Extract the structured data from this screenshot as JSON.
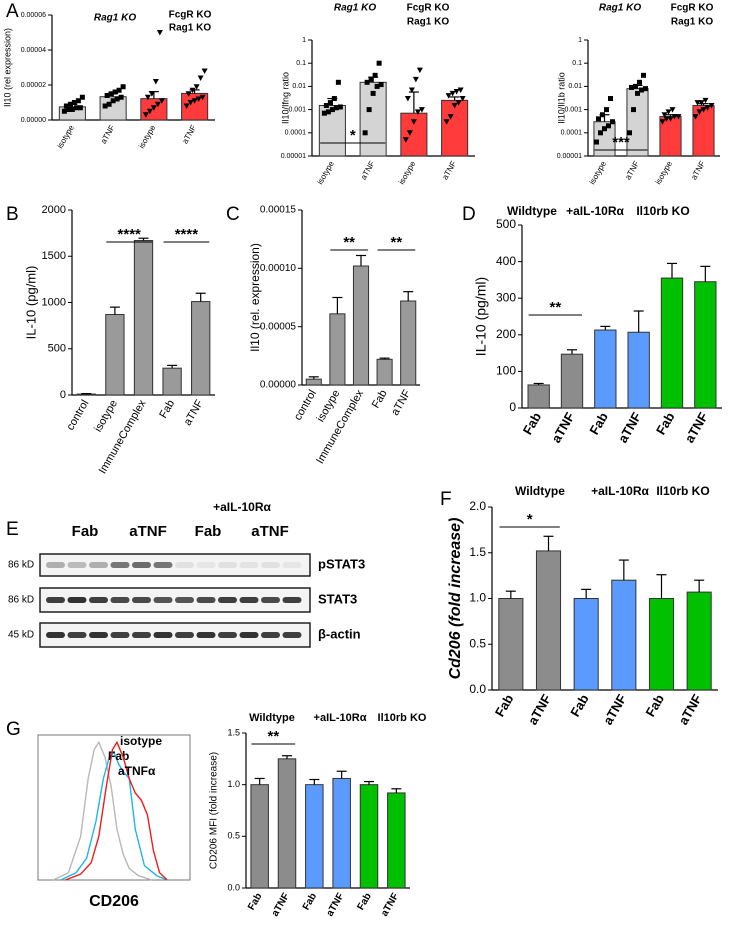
{
  "chart_data": [
    {
      "type": "bar",
      "panel": "A",
      "y_label": "Il10 (rel expression)",
      "group_labels": [
        [
          "Rag1 KO"
        ],
        [
          "FcgR KO",
          "Rag1 KO"
        ]
      ],
      "group_label_colors": [
        "#000000",
        "#e8141b"
      ],
      "categories": [
        "isotype",
        "aTNF",
        "isotype",
        "aTNF"
      ],
      "values": [
        7.5e-06,
        1.33e-05,
        1.22e-05,
        1.52e-05
      ],
      "errors": [
        1.5e-06,
        2e-06,
        4e-06,
        2e-06
      ],
      "colors": [
        "#d4d4d4",
        "#d4d4d4",
        "#ff3b3b",
        "#ff3b3b"
      ],
      "markers": [
        "square",
        "square",
        "triangle-down",
        "triangle-down"
      ],
      "points": [
        [
          5e-06,
          6e-06,
          6e-06,
          7e-06,
          7e-06,
          8e-06,
          9e-06,
          1e-05,
          1.1e-05,
          1.3e-05
        ],
        [
          8e-06,
          9e-06,
          1.1e-05,
          1.2e-05,
          1.3e-05,
          1.4e-05,
          1.5e-05,
          1.6e-05,
          1.7e-05,
          1.9e-05
        ],
        [
          3e-06,
          5e-06,
          7e-06,
          9e-06,
          1.1e-05,
          1.3e-05,
          1.5e-05,
          2.2e-05,
          5e-05
        ],
        [
          8e-06,
          1e-05,
          1.1e-05,
          1.2e-05,
          1.3e-05,
          1.5e-05,
          1.7e-05,
          1.9e-05,
          2.4e-05,
          2.8e-05
        ]
      ],
      "ylim": [
        0,
        6e-05
      ],
      "yticks": [
        {
          "value": 0,
          "label": "0.00000"
        },
        {
          "value": 2e-05,
          "label": "0.00002"
        },
        {
          "value": 4e-05,
          "label": "0.00004"
        },
        {
          "value": 6e-05,
          "label": "0.00006"
        }
      ],
      "significance": []
    },
    {
      "type": "bar",
      "y_label": "Il10/Ifng ratio",
      "log_scale": true,
      "group_labels": [
        [
          "Rag1 KO"
        ],
        [
          "FcgR KO",
          "Rag1 KO"
        ]
      ],
      "group_label_colors": [
        "#000000",
        "#e8141b"
      ],
      "categories": [
        "isotype",
        "aTNF",
        "isotype",
        "aTNF"
      ],
      "values": [
        0.0015,
        0.015,
        0.0007,
        0.0025
      ],
      "errors": [
        0.0015,
        0.01,
        0.005,
        0.001
      ],
      "colors": [
        "#d4d4d4",
        "#d4d4d4",
        "#ff3b3b",
        "#ff3b3b"
      ],
      "markers": [
        "square",
        "square",
        "triangle-down",
        "triangle-down"
      ],
      "points": [
        [
          0.0007,
          0.0008,
          0.001,
          0.0012,
          0.0013,
          0.0015,
          0.002,
          0.003,
          0.015
        ],
        [
          0.0001,
          0.001,
          0.005,
          0.01,
          0.012,
          0.015,
          0.02,
          0.03,
          0.1
        ],
        [
          5e-05,
          0.0001,
          0.0003,
          0.0008,
          0.001,
          0.003,
          0.007,
          0.02,
          0.05
        ],
        [
          0.0003,
          0.0005,
          0.0015,
          0.002,
          0.003,
          0.004,
          0.005,
          0.006,
          0.007
        ]
      ],
      "ylim": [
        1e-05,
        1
      ],
      "yticks": [
        1,
        0.1,
        0.01,
        0.001,
        0.0001,
        1e-05
      ],
      "significance": [
        "*"
      ]
    },
    {
      "type": "bar",
      "y_label": "Il10/Il1b ratio",
      "log_scale": true,
      "group_labels": [
        [
          "Rag1 KO"
        ],
        [
          "FcgR KO",
          "Rag1 KO"
        ]
      ],
      "group_label_colors": [
        "#000000",
        "#e8141b"
      ],
      "categories": [
        "isotype",
        "aTNF",
        "isotype",
        "aTNF"
      ],
      "values": [
        0.0003,
        0.008,
        0.0005,
        0.0015
      ],
      "errors": [
        0.0003,
        0.003,
        0.0001,
        0.0003
      ],
      "colors": [
        "#d4d4d4",
        "#d4d4d4",
        "#ff3b3b",
        "#ff3b3b"
      ],
      "markers": [
        "square",
        "square",
        "triangle-down",
        "triangle-down"
      ],
      "points": [
        [
          4e-05,
          0.0001,
          0.00015,
          0.0002,
          0.0003,
          0.0004,
          0.0006,
          0.001,
          0.003
        ],
        [
          0.0001,
          0.001,
          0.005,
          0.007,
          0.008,
          0.009,
          0.01,
          0.015,
          0.03
        ],
        [
          0.0003,
          0.0004,
          0.0004,
          0.0005,
          0.0005,
          0.0006,
          0.0008,
          0.001
        ],
        [
          0.0005,
          0.0008,
          0.001,
          0.0012,
          0.0015,
          0.002,
          0.002,
          0.0025
        ]
      ],
      "ylim": [
        1e-05,
        1
      ],
      "yticks": [
        1,
        0.1,
        0.01,
        0.001,
        0.0001,
        1e-05
      ],
      "significance": [
        "***"
      ]
    },
    {
      "type": "bar",
      "panel": "B",
      "y_label": "IL-10 (pg/ml)",
      "categories": [
        "control",
        "isotype",
        "ImmuneComplex",
        "Fab",
        "aTNF"
      ],
      "values": [
        10,
        870,
        1670,
        290,
        1010
      ],
      "errors": [
        5,
        80,
        25,
        30,
        90
      ],
      "colors": [
        "#9a9a9a",
        "#9a9a9a",
        "#9a9a9a",
        "#9a9a9a",
        "#9a9a9a"
      ],
      "ylim": [
        0,
        2000
      ],
      "yticks": [
        0,
        500,
        1000,
        1500,
        2000
      ],
      "significance": [
        "****",
        "****"
      ]
    },
    {
      "type": "bar",
      "panel": "C",
      "y_label": "Il10 (rel. expression)",
      "categories": [
        "control",
        "isotype",
        "ImmuneComplex",
        "Fab",
        "aTNF"
      ],
      "values": [
        5e-06,
        6.1e-05,
        0.000102,
        2.2e-05,
        7.2e-05
      ],
      "errors": [
        2e-06,
        1.4e-05,
        9e-06,
        1e-06,
        8e-06
      ],
      "colors": [
        "#9a9a9a",
        "#9a9a9a",
        "#9a9a9a",
        "#9a9a9a",
        "#9a9a9a"
      ],
      "ylim": [
        0,
        0.00015
      ],
      "yticks": [
        {
          "value": 0,
          "label": "0.00000"
        },
        {
          "value": 5e-05,
          "label": "0.00005"
        },
        {
          "value": 0.0001,
          "label": "0.00010"
        },
        {
          "value": 0.00015,
          "label": "0.00015"
        }
      ],
      "significance": [
        "**",
        "**"
      ]
    },
    {
      "type": "bar",
      "panel": "D",
      "y_label": "IL-10 (pg/ml)",
      "group_labels": [
        [
          "Wildtype"
        ],
        [
          "+aIL-10Rα"
        ],
        [
          "Il10rb KO"
        ]
      ],
      "group_label_colors": [
        "#333333",
        "#1f7ac9",
        "#1a9a1a"
      ],
      "categories": [
        "Fab",
        "aTNF",
        "Fab",
        "aTNF",
        "Fab",
        "aTNF"
      ],
      "values": [
        63,
        147,
        213,
        207,
        355,
        345
      ],
      "errors": [
        4,
        12,
        10,
        58,
        40,
        42
      ],
      "colors": [
        "#8c8c8c",
        "#8c8c8c",
        "#5b9bff",
        "#5b9bff",
        "#00c000",
        "#00c000"
      ],
      "ylim": [
        0,
        500
      ],
      "yticks": [
        0,
        100,
        200,
        300,
        400,
        500
      ],
      "significance": [
        "**"
      ]
    },
    {
      "type": "blot",
      "panel": "E",
      "treatment": "+aIL-10Rα",
      "lane_groups": [
        "Fab",
        "aTNF",
        "Fab",
        "aTNF"
      ],
      "lane_group_colors": [
        "#000000",
        "#000000",
        "#1f7ac9",
        "#1f7ac9"
      ],
      "markers": [
        "86 kD",
        "86 kD",
        "45 kD"
      ],
      "proteins": [
        "pSTAT3",
        "STAT3",
        "β-actin"
      ]
    },
    {
      "type": "bar",
      "panel": "F",
      "y_label": "Cd206 (fold increase)",
      "group_labels": [
        [
          "Wildtype"
        ],
        [
          "+aIL-10Rα"
        ],
        [
          "Il10rb KO"
        ]
      ],
      "group_label_colors": [
        "#333333",
        "#1f7ac9",
        "#1a9a1a"
      ],
      "categories": [
        "Fab",
        "aTNF",
        "Fab",
        "aTNF",
        "Fab",
        "aTNF"
      ],
      "values": [
        1.0,
        1.52,
        1.0,
        1.2,
        1.0,
        1.07
      ],
      "errors": [
        0.08,
        0.16,
        0.1,
        0.22,
        0.26,
        0.13
      ],
      "colors": [
        "#8c8c8c",
        "#8c8c8c",
        "#5b9bff",
        "#5b9bff",
        "#00c000",
        "#00c000"
      ],
      "ylim": [
        0,
        2
      ],
      "yticks": [
        {
          "value": 0,
          "label": "0.0"
        },
        {
          "value": 0.5,
          "label": "0.5"
        },
        {
          "value": 1,
          "label": "1.0"
        },
        {
          "value": 1.5,
          "label": "1.5"
        },
        {
          "value": 2,
          "label": "2.0"
        }
      ],
      "significance": [
        "*"
      ]
    },
    {
      "type": "line",
      "panel": "G",
      "x_label": "CD206",
      "xlim": [
        0,
        100
      ],
      "ylim": [
        0,
        100
      ],
      "series": [
        {
          "name": "isotype",
          "color": "#b8b8b8",
          "x": [
            10,
            20,
            28,
            33,
            37,
            40,
            44,
            48,
            52,
            56,
            60,
            66,
            75
          ],
          "values": [
            0,
            5,
            30,
            70,
            90,
            95,
            85,
            65,
            35,
            18,
            8,
            3,
            0
          ]
        },
        {
          "name": "Fab",
          "color": "#1fb4ea",
          "x": [
            15,
            25,
            32,
            38,
            43,
            47,
            50,
            53,
            56,
            60,
            64,
            70,
            78,
            85
          ],
          "values": [
            0,
            5,
            15,
            40,
            70,
            85,
            88,
            80,
            75,
            70,
            35,
            10,
            3,
            0
          ]
        },
        {
          "name": "aTNFα",
          "color": "#ee1c1c",
          "x": [
            18,
            28,
            35,
            40,
            45,
            49,
            52,
            56,
            60,
            64,
            68,
            72,
            76,
            80,
            85
          ],
          "values": [
            0,
            4,
            12,
            30,
            65,
            90,
            95,
            85,
            70,
            60,
            55,
            45,
            20,
            5,
            0
          ]
        }
      ]
    },
    {
      "type": "bar",
      "y_label": "CD206 MFI (fold increase)",
      "group_labels": [
        [
          "Wildtype"
        ],
        [
          "+aIL-10Rα"
        ],
        [
          "Il10rb KO"
        ]
      ],
      "group_label_colors": [
        "#333333",
        "#1f7ac9",
        "#1a9a1a"
      ],
      "categories": [
        "Fab",
        "aTNF",
        "Fab",
        "aTNF",
        "Fab",
        "aTNF"
      ],
      "values": [
        1.0,
        1.25,
        1.0,
        1.06,
        1.0,
        0.92
      ],
      "errors": [
        0.06,
        0.03,
        0.05,
        0.07,
        0.03,
        0.04
      ],
      "colors": [
        "#8c8c8c",
        "#8c8c8c",
        "#5b9bff",
        "#5b9bff",
        "#00c000",
        "#00c000"
      ],
      "ylim": [
        0,
        1.5
      ],
      "yticks": [
        {
          "value": 0,
          "label": "0.0"
        },
        {
          "value": 0.5,
          "label": "0.5"
        },
        {
          "value": 1,
          "label": "1.0"
        },
        {
          "value": 1.5,
          "label": "1.5"
        }
      ],
      "significance": [
        "**"
      ]
    }
  ]
}
